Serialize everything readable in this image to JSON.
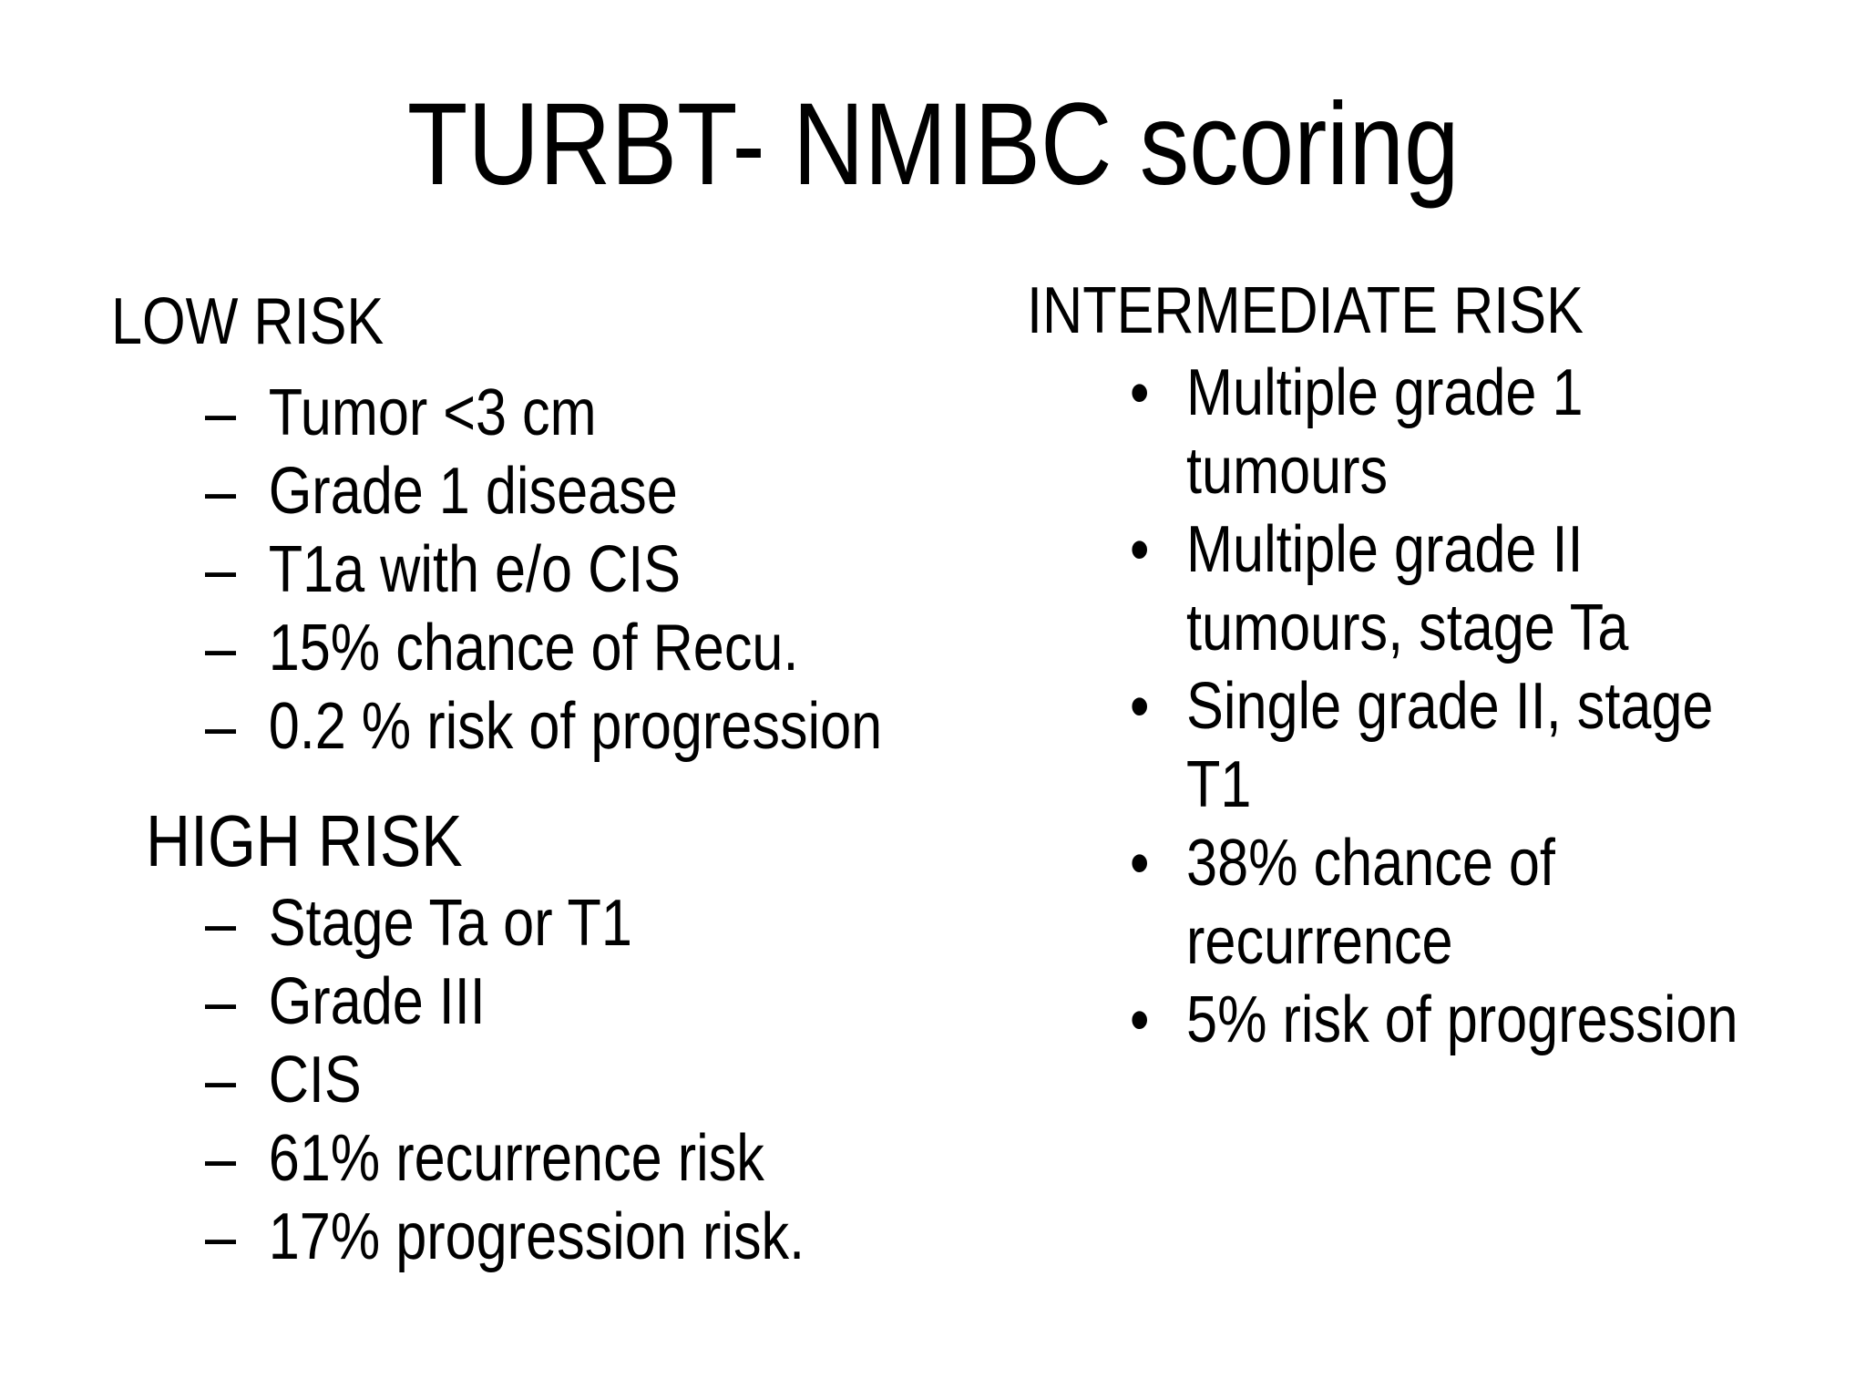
{
  "slide": {
    "title": "TURBT- NMIBC scoring",
    "colors": {
      "background": "#ffffff",
      "text": "#000000"
    },
    "sections": [
      {
        "heading": "LOW RISK",
        "marker": "–",
        "items": [
          "Tumor <3 cm",
          "Grade 1 disease",
          "T1a with e/o CIS",
          "15% chance of Recu.",
          "0.2 % risk of progression"
        ]
      },
      {
        "heading": "HIGH RISK",
        "marker": "–",
        "items": [
          "Stage Ta or T1",
          "Grade III",
          "CIS",
          "61% recurrence risk",
          "17% progression risk."
        ]
      },
      {
        "heading": "INTERMEDIATE RISK",
        "marker": "•",
        "items": [
          "Multiple grade 1 tumours",
          "Multiple grade II tumours, stage Ta",
          "Single grade II, stage T1",
          "38% chance of recurrence",
          "5% risk of progression"
        ]
      }
    ]
  }
}
